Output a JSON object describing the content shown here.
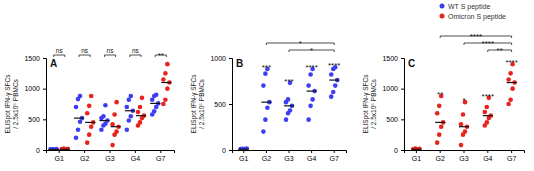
{
  "chart_data": [
    {
      "type": "strip",
      "panel_label": "A",
      "legend": "upper right",
      "ylabel": [
        "ELISpot IFN-γ SFCs",
        "/ 2.5x10⁵ PBMCs"
      ],
      "categories": [
        "G1",
        "G2",
        "G3",
        "G4",
        "G7"
      ],
      "ylim": [
        0,
        1500
      ],
      "yticks": [
        0,
        500,
        1000,
        1500
      ],
      "series": [
        {
          "name": "WT S peptide",
          "color": "#3d3df5",
          "values": [
            [
              8,
              12,
              5,
              15,
              10,
              6,
              9
            ],
            [
              200,
              330,
              460,
              520,
              700,
              830,
              880
            ],
            [
              330,
              400,
              430,
              480,
              520,
              550,
              730
            ],
            [
              330,
              480,
              550,
              640,
              700,
              820,
              880
            ],
            [
              580,
              630,
              700,
              760,
              820,
              880,
              900
            ]
          ],
          "medians": [
            9,
            520,
            480,
            640,
            760
          ]
        },
        {
          "name": "Omicron S peptide",
          "color": "#e8231c",
          "values": [
            [
              10,
              15,
              8,
              20,
              12,
              25,
              5
            ],
            [
              120,
              250,
              380,
              450,
              600,
              720,
              880
            ],
            [
              80,
              250,
              300,
              380,
              420,
              580,
              780
            ],
            [
              400,
              450,
              520,
              560,
              620,
              700,
              850
            ],
            [
              750,
              820,
              1000,
              1100,
              1150,
              1250,
              1400
            ]
          ],
          "medians": [
            12,
            450,
            380,
            560,
            1100
          ]
        }
      ],
      "annotations": [
        {
          "group": "G1",
          "text": "ns"
        },
        {
          "group": "G2",
          "text": "ns"
        },
        {
          "group": "G3",
          "text": "ns"
        },
        {
          "group": "G4",
          "text": "ns"
        },
        {
          "group": "G7",
          "text": "**"
        }
      ]
    },
    {
      "type": "strip",
      "panel_label": "B",
      "ylabel": [
        "ELISpot IFN-γ SFCs",
        "/ 2.5x10⁵ PBMCs"
      ],
      "categories": [
        "G1",
        "G2",
        "G3",
        "G4",
        "G7"
      ],
      "ylim": [
        0,
        1000
      ],
      "yticks": [
        0,
        500,
        1000
      ],
      "series": [
        {
          "color": "#3d3df5",
          "values": [
            [
              8,
              12,
              5,
              15,
              10,
              6,
              9
            ],
            [
              200,
              330,
              460,
              520,
              700,
              830,
              880
            ],
            [
              330,
              400,
              430,
              480,
              520,
              550,
              730
            ],
            [
              330,
              480,
              550,
              640,
              700,
              820,
              880
            ],
            [
              580,
              630,
              700,
              760,
              820,
              880,
              900
            ]
          ],
          "medians": [
            9,
            520,
            480,
            640,
            760
          ]
        }
      ],
      "annotations": [
        {
          "group": "G2",
          "text": "***"
        },
        {
          "group": "G3",
          "text": "***"
        },
        {
          "group": "G4",
          "text": "****"
        },
        {
          "group": "G7",
          "text": "****"
        },
        {
          "from": "G3",
          "to": "G7",
          "text": "*"
        },
        {
          "from": "G2",
          "to": "G7",
          "text": "*"
        }
      ]
    },
    {
      "type": "strip",
      "panel_label": "C",
      "ylabel": [
        "ELISpot IFN-γ SFCs",
        "/ 2.5x10⁵ PBMCs"
      ],
      "categories": [
        "G1",
        "G2",
        "G3",
        "G4",
        "G7"
      ],
      "ylim": [
        0,
        1500
      ],
      "yticks": [
        0,
        500,
        1000,
        1500
      ],
      "series": [
        {
          "color": "#e8231c",
          "values": [
            [
              10,
              15,
              8,
              20,
              12,
              25,
              5
            ],
            [
              120,
              250,
              380,
              450,
              600,
              720,
              880
            ],
            [
              80,
              250,
              300,
              380,
              420,
              580,
              780
            ],
            [
              400,
              450,
              520,
              560,
              620,
              700,
              850
            ],
            [
              750,
              820,
              1000,
              1100,
              1150,
              1250,
              1400
            ]
          ],
          "medians": [
            12,
            450,
            380,
            560,
            1100
          ]
        }
      ],
      "annotations": [
        {
          "group": "G2",
          "text": "**"
        },
        {
          "group": "G3",
          "text": "*"
        },
        {
          "group": "G4",
          "text": "****"
        },
        {
          "group": "G7",
          "text": "****"
        },
        {
          "from": "G4",
          "to": "G7",
          "text": "**"
        },
        {
          "from": "G3",
          "to": "G7",
          "text": "****"
        },
        {
          "from": "G2",
          "to": "G7",
          "text": "****"
        }
      ]
    }
  ]
}
